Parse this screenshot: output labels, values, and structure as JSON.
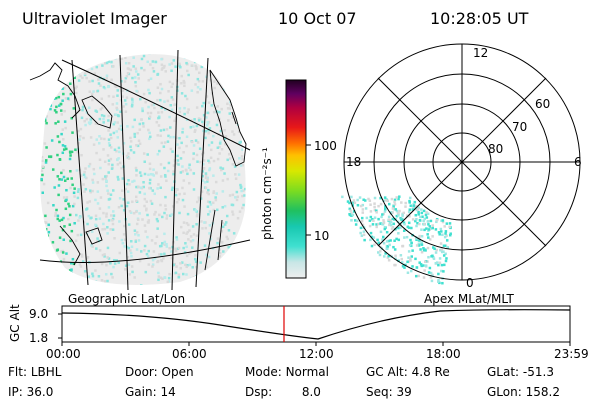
{
  "header": {
    "instrument": "Ultraviolet Imager",
    "date": "10 Oct 07",
    "time": "10:28:05 UT"
  },
  "colorbar": {
    "label": "photon cm⁻²s⁻¹",
    "ticks": [
      "100",
      "10"
    ]
  },
  "polar_plot": {
    "hour_labels": {
      "top": "12",
      "left": "18",
      "right": "6",
      "bottom": "0"
    },
    "lat_labels": [
      "60",
      "70",
      "80"
    ]
  },
  "panels": {
    "left_label": "Geographic Lat/Lon",
    "right_label": "Apex MLat/MLT"
  },
  "timeline": {
    "axis_label": "GC Alt",
    "y_ticks": [
      "9.0",
      "1.8"
    ],
    "x_ticks": [
      "00:00",
      "06:00",
      "12:00",
      "18:00",
      "23:59"
    ],
    "current_time_fraction": 0.437,
    "marker_color": "#e00000"
  },
  "info": {
    "filter_label": "Flt:",
    "filter_value": "LBHL",
    "ip_label": "IP:",
    "ip_value": "36.0",
    "door_label": "Door:",
    "door_value": "Open",
    "gain_label": "Gain:",
    "gain_value": "14",
    "mode_label": "Mode:",
    "mode_value": "Normal",
    "dsp_label": "Dsp:",
    "dsp_value": "8.0",
    "gcalt_label": "GC Alt:",
    "gcalt_value": "4.8 Re",
    "seq_label": "Seq:",
    "seq_value": "39",
    "glat_label": "GLat:",
    "glat_value": "-51.3",
    "glon_label": "GLon:",
    "glon_value": "158.2"
  }
}
